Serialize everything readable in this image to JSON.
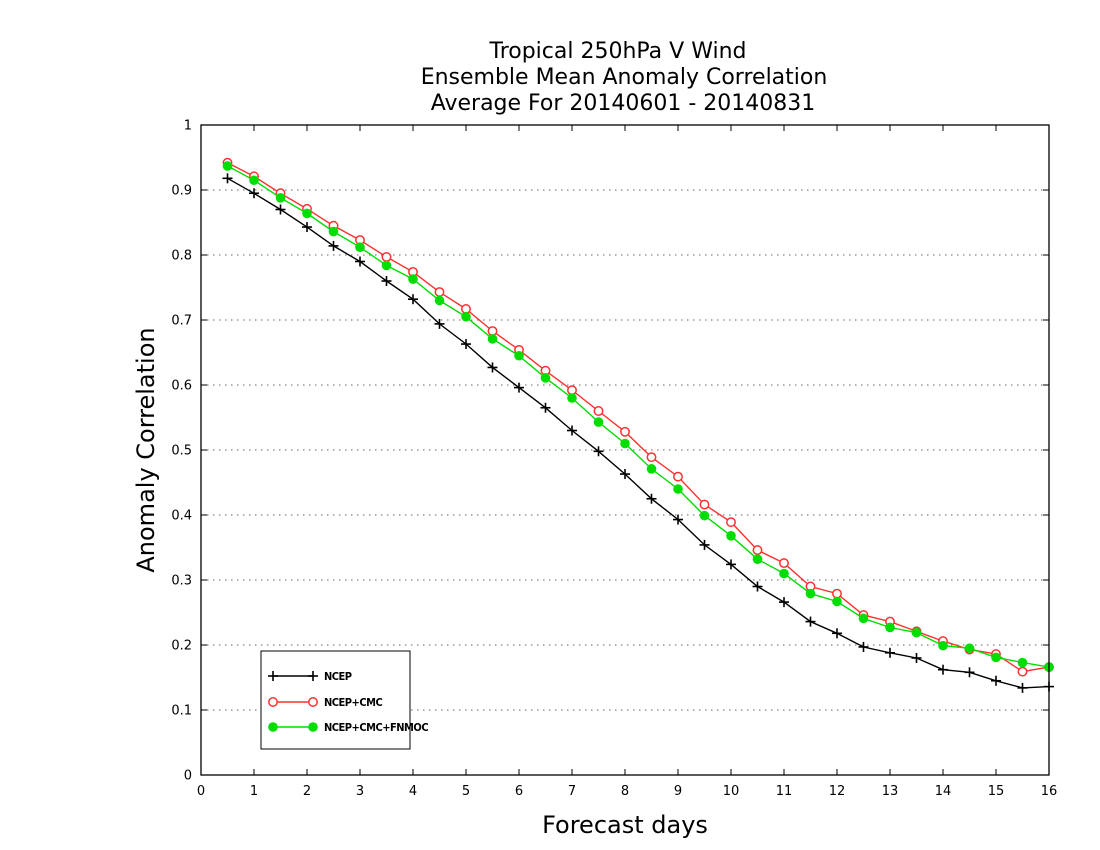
{
  "chart_data": {
    "type": "line",
    "title_lines": [
      "Tropical 250hPa V Wind",
      "Ensemble Mean Anomaly Correlation",
      "Average For 20140601 - 20140831"
    ],
    "xlabel": "Forecast days",
    "ylabel": "Anomaly Correlation",
    "xlim": [
      0,
      16
    ],
    "ylim": [
      0,
      1
    ],
    "xticks": [
      "0",
      "1",
      "2",
      "3",
      "4",
      "5",
      "6",
      "7",
      "8",
      "9",
      "10",
      "11",
      "12",
      "13",
      "14",
      "15",
      "16"
    ],
    "yticks": [
      "0",
      "0.1",
      "0.2",
      "0.3",
      "0.4",
      "0.5",
      "0.6",
      "0.7",
      "0.8",
      "0.9",
      "1"
    ],
    "grid": "horizontal dotted",
    "legend_position": "bottom-left",
    "x": [
      0.5,
      1,
      1.5,
      2,
      2.5,
      3,
      3.5,
      4,
      4.5,
      5,
      5.5,
      6,
      6.5,
      7,
      7.5,
      8,
      8.5,
      9,
      9.5,
      10,
      10.5,
      11,
      11.5,
      12,
      12.5,
      13,
      13.5,
      14,
      14.5,
      15,
      15.5,
      16
    ],
    "series": [
      {
        "name": "NCEP",
        "color": "#000000",
        "marker": "plus",
        "values": [
          0.918,
          0.895,
          0.87,
          0.843,
          0.814,
          0.79,
          0.76,
          0.732,
          0.694,
          0.663,
          0.627,
          0.596,
          0.565,
          0.53,
          0.498,
          0.463,
          0.425,
          0.393,
          0.354,
          0.324,
          0.29,
          0.266,
          0.236,
          0.218,
          0.197,
          0.188,
          0.18,
          0.162,
          0.158,
          0.145,
          0.134,
          0.136
        ]
      },
      {
        "name": "NCEP+CMC",
        "color": "#ff3030",
        "marker": "open-circle",
        "values": [
          0.942,
          0.921,
          0.895,
          0.871,
          0.845,
          0.823,
          0.797,
          0.774,
          0.743,
          0.717,
          0.683,
          0.654,
          0.622,
          0.592,
          0.56,
          0.528,
          0.489,
          0.459,
          0.416,
          0.389,
          0.346,
          0.326,
          0.29,
          0.279,
          0.246,
          0.236,
          0.221,
          0.206,
          0.193,
          0.186,
          0.159,
          0.166
        ]
      },
      {
        "name": "NCEP+CMC+FNMOC",
        "color": "#00dd00",
        "marker": "filled-circle",
        "values": [
          0.937,
          0.915,
          0.888,
          0.864,
          0.836,
          0.812,
          0.784,
          0.763,
          0.73,
          0.705,
          0.671,
          0.645,
          0.611,
          0.58,
          0.543,
          0.51,
          0.471,
          0.44,
          0.399,
          0.368,
          0.332,
          0.31,
          0.279,
          0.267,
          0.241,
          0.227,
          0.219,
          0.199,
          0.195,
          0.181,
          0.173,
          0.166
        ]
      }
    ]
  }
}
